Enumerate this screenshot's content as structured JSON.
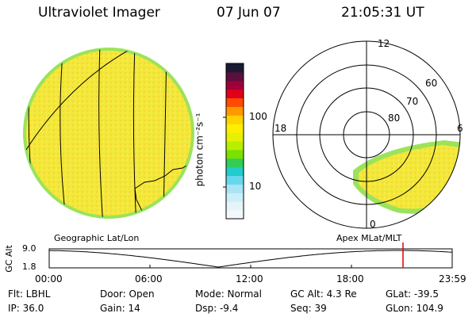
{
  "header": {
    "instrument": "Ultraviolet Imager",
    "date": "07 Jun 07",
    "time": "21:05:31 UT"
  },
  "colorbar": {
    "label": "photon cm⁻²s⁻¹",
    "ticks": [
      "100",
      "10"
    ],
    "colors": [
      "#1a1a33",
      "#5b0f3d",
      "#a0003a",
      "#e0001a",
      "#ff4a00",
      "#ff9900",
      "#ffd200",
      "#ffee00",
      "#e6f000",
      "#b8ee00",
      "#7ae000",
      "#33cc55",
      "#22cccc",
      "#66d8ee",
      "#a8e4f4",
      "#cceef8",
      "#e6f4fa",
      "#f4f8fb"
    ]
  },
  "left_panel": {
    "label": "Geographic Lat/Lon",
    "fill_color": "#f2e83a",
    "edge_color": "#9be35a"
  },
  "right_panel": {
    "label": "Apex MLat/MLT",
    "mlt_labels": {
      "top": "12",
      "left": "18",
      "right": "6",
      "bottom": "0"
    },
    "lat_labels": [
      "60",
      "70",
      "80"
    ],
    "fill_color": "#f2e83a",
    "edge_color": "#9be35a"
  },
  "altitude_plot": {
    "ylabel": "GC Alt",
    "yticks": [
      "9.0",
      "1.8"
    ],
    "xticks": [
      "00:00",
      "06:00",
      "12:00",
      "18:00",
      "23:59"
    ],
    "marker_color": "#e00000"
  },
  "status": {
    "filter_label": "Flt: LBHL",
    "door_label": "Door: Open",
    "mode_label": "Mode: Normal",
    "gc_alt_label": "GC Alt: 4.3 Re",
    "glat_label": "GLat: -39.5",
    "ip_label": "IP: 36.0",
    "gain_label": "Gain: 14",
    "dsp_label": "Dsp:   -9.4",
    "seq_label": "Seq: 39",
    "glon_label": "GLon: 104.9"
  }
}
